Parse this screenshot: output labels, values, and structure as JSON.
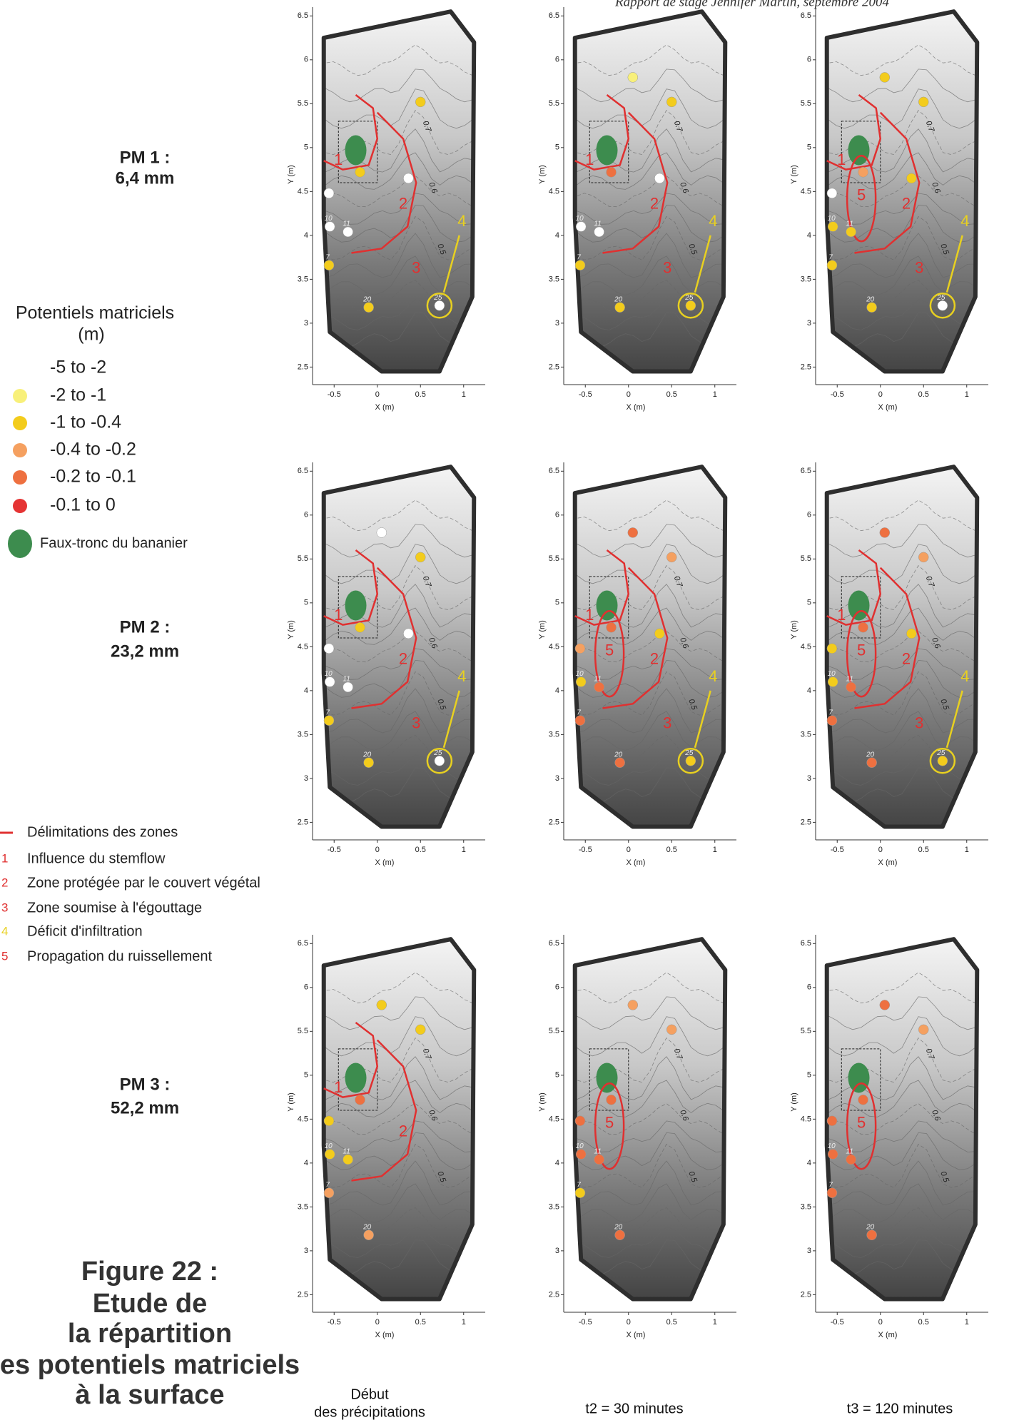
{
  "header": "Rapport de stage Jennifer Martin, septembre 2004",
  "legend": {
    "title": "Potentiels matriciels",
    "unit": "(m)",
    "classes": [
      {
        "label": "-5 to -2",
        "color": "#ffffff"
      },
      {
        "label": "-2 to -1",
        "color": "#f8f07a"
      },
      {
        "label": "-1 to -0.4",
        "color": "#f3cc1c"
      },
      {
        "label": "-0.4 to -0.2",
        "color": "#f5a060"
      },
      {
        "label": "-0.2 to -0.1",
        "color": "#ee7040"
      },
      {
        "label": "-0.1 to 0",
        "color": "#e53434"
      }
    ]
  },
  "trunk": {
    "label": "Faux-tronc du bananier",
    "color": "#3d8c4e"
  },
  "zone_legend": {
    "line_label": "Délimitations des zones",
    "line_color": "#e03030",
    "items": [
      {
        "marker": "1",
        "label": "Influence du stemflow",
        "color": "#e03030"
      },
      {
        "marker": "2",
        "label": "Zone protégée par le couvert végétal",
        "color": "#e03030"
      },
      {
        "marker": "3",
        "label": "Zone soumise à l'égouttage",
        "color": "#e03030"
      },
      {
        "marker": "4",
        "label": "Déficit d'infiltration",
        "color": "#e8d020"
      },
      {
        "marker": "5",
        "label": "Propagation du ruissellement",
        "color": "#e03030"
      }
    ]
  },
  "rows": [
    {
      "label": "PM 1 :",
      "rain": "6,4 mm"
    },
    {
      "label": "PM 2 :",
      "rain": "23,2 mm"
    },
    {
      "label": "PM 3 :",
      "rain": "52,2 mm"
    }
  ],
  "columns": [
    [
      "Début",
      "des précipitations"
    ],
    [
      "t2 = 30 minutes"
    ],
    [
      "t3 = 120 minutes"
    ]
  ],
  "caption": [
    "Figure 22 :",
    "Etude de",
    "la répartition",
    "es potentiels matriciels",
    "à la surface"
  ],
  "map": {
    "xlabel": "X (m)",
    "ylabel": "Y (m)",
    "xlim": [
      -0.75,
      1.25
    ],
    "ylim": [
      2.3,
      6.6
    ],
    "xticks": [
      -0.5,
      0,
      0.5,
      1
    ],
    "yticks": [
      2.5,
      3,
      3.5,
      4,
      4.5,
      5,
      5.5,
      6,
      6.5
    ],
    "contour_labels": [
      "0.7",
      "0.6",
      "0.5"
    ]
  },
  "sensors": [
    {
      "x": -0.2,
      "y": 4.72
    },
    {
      "x": 0.5,
      "y": 5.52
    },
    {
      "x": 0.36,
      "y": 4.65
    },
    {
      "x": -0.56,
      "y": 4.48
    },
    {
      "x": -0.55,
      "y": 4.1,
      "label": "10"
    },
    {
      "x": -0.34,
      "y": 4.04,
      "label": "11"
    },
    {
      "x": -0.56,
      "y": 3.66,
      "label": "7"
    },
    {
      "x": -0.1,
      "y": 3.18,
      "label": "20"
    },
    {
      "x": 0.72,
      "y": 3.2,
      "label": "25"
    },
    {
      "x": 0.05,
      "y": 5.8
    }
  ],
  "panels": [
    {
      "classes": [
        2,
        2,
        0,
        0,
        0,
        0,
        2,
        2,
        0,
        null
      ],
      "zones": [
        "1",
        "2",
        "3",
        "4"
      ]
    },
    {
      "classes": [
        4,
        2,
        0,
        null,
        0,
        0,
        2,
        2,
        2,
        1
      ],
      "zones": [
        "1",
        "2",
        "3",
        "4"
      ]
    },
    {
      "classes": [
        3,
        2,
        2,
        0,
        2,
        2,
        2,
        2,
        0,
        2
      ],
      "zones": [
        "1",
        "2",
        "3",
        "4",
        "5"
      ]
    },
    {
      "classes": [
        2,
        2,
        0,
        0,
        0,
        0,
        2,
        2,
        0,
        0
      ],
      "zones": [
        "1",
        "2",
        "3",
        "4"
      ]
    },
    {
      "classes": [
        4,
        3,
        2,
        3,
        2,
        4,
        4,
        4,
        2,
        4
      ],
      "zones": [
        "1",
        "2",
        "3",
        "4",
        "5"
      ]
    },
    {
      "classes": [
        4,
        3,
        2,
        2,
        2,
        4,
        4,
        4,
        2,
        4
      ],
      "zones": [
        "1",
        "2",
        "3",
        "4",
        "5"
      ]
    },
    {
      "classes": [
        4,
        2,
        null,
        2,
        2,
        2,
        3,
        3,
        null,
        2
      ],
      "zones": [
        "1",
        "2"
      ]
    },
    {
      "classes": [
        4,
        3,
        null,
        4,
        4,
        4,
        2,
        4,
        null,
        3
      ],
      "zones": [
        "5"
      ]
    },
    {
      "classes": [
        4,
        3,
        null,
        4,
        4,
        4,
        4,
        4,
        null,
        4
      ],
      "zones": [
        "5"
      ]
    }
  ]
}
